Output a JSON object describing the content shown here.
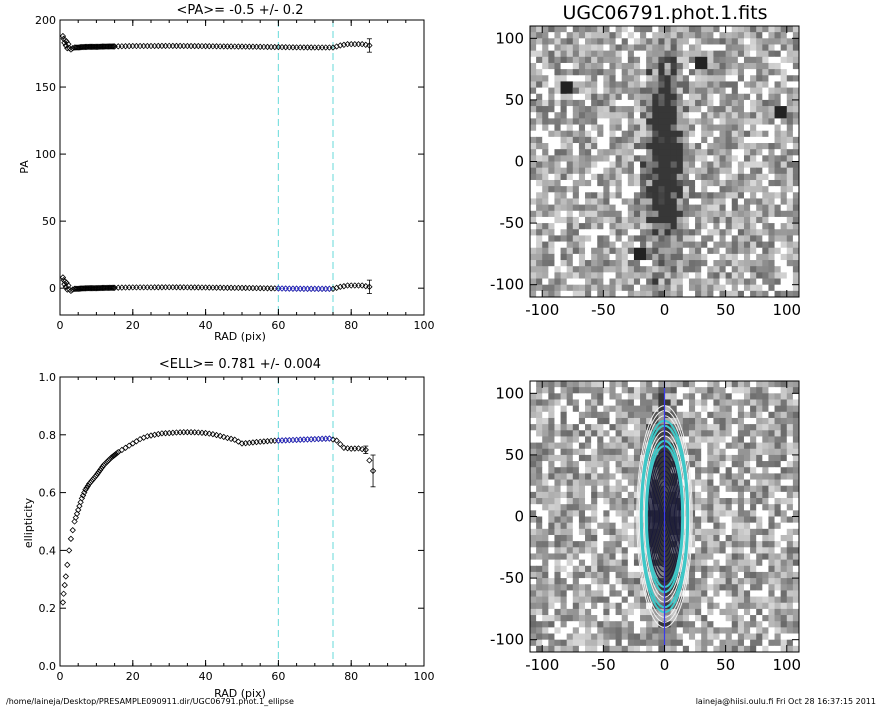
{
  "chart_data": [
    {
      "type": "scatter",
      "title": "<PA>=  -0.5 +/-   0.2",
      "xlabel": "RAD (pix)",
      "ylabel": "PA",
      "xlim": [
        0,
        100
      ],
      "ylim": [
        -20,
        200
      ],
      "xticks": [
        0,
        20,
        40,
        60,
        80,
        100
      ],
      "yticks": [
        0,
        50,
        100,
        150,
        200
      ],
      "vlines": [
        60,
        75
      ],
      "vline_color": "#7fe0e0",
      "series": [
        {
          "role": "upper",
          "color": "#000000",
          "points": [
            [
              0.8,
              188
            ],
            [
              1.0,
              186
            ],
            [
              1.2,
              183
            ],
            [
              1.4,
              185
            ],
            [
              1.6,
              181
            ],
            [
              1.8,
              184
            ],
            [
              2.0,
              179
            ],
            [
              2.3,
              182
            ],
            [
              2.6,
              179
            ],
            [
              3.0,
              178
            ],
            [
              3.5,
              179
            ],
            [
              4,
              179.5
            ],
            [
              5,
              179.5
            ],
            [
              6,
              179.8
            ],
            [
              8,
              180
            ],
            [
              10,
              180
            ],
            [
              12,
              180.2
            ],
            [
              15,
              180.3
            ],
            [
              18,
              180.5
            ],
            [
              20,
              180.6
            ],
            [
              25,
              180.6
            ],
            [
              30,
              180.7
            ],
            [
              35,
              180.6
            ],
            [
              40,
              180.5
            ],
            [
              45,
              180.3
            ],
            [
              50,
              180.2
            ],
            [
              55,
              180
            ],
            [
              60,
              179.8
            ],
            [
              65,
              179.6
            ],
            [
              70,
              179.5
            ],
            [
              75,
              179.5
            ],
            [
              77,
              181
            ],
            [
              79,
              182
            ],
            [
              81,
              182
            ],
            [
              83,
              182
            ],
            [
              85,
              181
            ]
          ],
          "error_bars": [
            [
              85,
              176,
              186
            ]
          ]
        },
        {
          "role": "lower",
          "color": "#000000",
          "points": [
            [
              0.8,
              8
            ],
            [
              1.0,
              6
            ],
            [
              1.2,
              3
            ],
            [
              1.4,
              5
            ],
            [
              1.6,
              1
            ],
            [
              1.8,
              4
            ],
            [
              2.0,
              -1
            ],
            [
              2.3,
              2
            ],
            [
              2.6,
              -1
            ],
            [
              3.0,
              -2
            ],
            [
              3.5,
              -1
            ],
            [
              4,
              -0.5
            ],
            [
              5,
              -0.5
            ],
            [
              6,
              -0.2
            ],
            [
              8,
              0
            ],
            [
              10,
              0
            ],
            [
              12,
              0.2
            ],
            [
              15,
              0.3
            ],
            [
              18,
              0.5
            ],
            [
              20,
              0.6
            ],
            [
              25,
              0.6
            ],
            [
              30,
              0.7
            ],
            [
              35,
              0.6
            ],
            [
              40,
              0.5
            ],
            [
              45,
              0.3
            ],
            [
              50,
              0.2
            ],
            [
              55,
              0
            ],
            [
              60,
              -0.2
            ],
            [
              65,
              -0.4
            ],
            [
              70,
              -0.5
            ],
            [
              75,
              -0.5
            ],
            [
              77,
              1
            ],
            [
              79,
              2
            ],
            [
              81,
              2
            ],
            [
              83,
              2
            ],
            [
              85,
              1
            ]
          ],
          "error_bars": [
            [
              85,
              -4,
              6
            ]
          ]
        },
        {
          "role": "fit-range",
          "color": "#2a2acc",
          "points": [
            [
              60,
              -0.2
            ],
            [
              62,
              -0.3
            ],
            [
              64,
              -0.4
            ],
            [
              66,
              -0.4
            ],
            [
              68,
              -0.5
            ],
            [
              70,
              -0.5
            ],
            [
              72,
              -0.5
            ],
            [
              74,
              -0.5
            ]
          ]
        }
      ]
    },
    {
      "type": "image",
      "title": "UGC06791.phot.1.fits",
      "xlim": [
        -110,
        110
      ],
      "ylim": [
        -110,
        110
      ],
      "xticks": [
        -100,
        -50,
        0,
        50,
        100
      ],
      "yticks": [
        -100,
        -50,
        0,
        50,
        100
      ],
      "galaxy": {
        "cx": 0,
        "cy": 0,
        "major_half": 80,
        "minor_half": 14
      },
      "bright_spots": [
        [
          95,
          40
        ],
        [
          -20,
          -75
        ],
        [
          30,
          80
        ],
        [
          -80,
          60
        ]
      ]
    },
    {
      "type": "scatter",
      "title": "<ELL>= 0.781 +/-  0.004",
      "xlabel": "RAD (pix)",
      "ylabel": "ellipticity",
      "xlim": [
        0,
        100
      ],
      "ylim": [
        0.0,
        1.0
      ],
      "xticks": [
        0,
        20,
        40,
        60,
        80,
        100
      ],
      "yticks": [
        0.0,
        0.2,
        0.4,
        0.6,
        0.8,
        1.0
      ],
      "ytick_labels": [
        "0.0",
        "0.2",
        "0.4",
        "0.6",
        "0.8",
        "1.0"
      ],
      "vlines": [
        60,
        75
      ],
      "vline_color": "#7fe0e0",
      "series": [
        {
          "role": "profile",
          "color": "#000000",
          "points": [
            [
              0.8,
              0.22
            ],
            [
              1,
              0.25
            ],
            [
              1.3,
              0.28
            ],
            [
              1.6,
              0.31
            ],
            [
              2,
              0.35
            ],
            [
              2.5,
              0.4
            ],
            [
              3,
              0.44
            ],
            [
              3.5,
              0.47
            ],
            [
              4,
              0.5
            ],
            [
              5,
              0.54
            ],
            [
              6,
              0.58
            ],
            [
              7,
              0.61
            ],
            [
              8,
              0.63
            ],
            [
              9,
              0.645
            ],
            [
              10,
              0.66
            ],
            [
              12,
              0.695
            ],
            [
              14,
              0.72
            ],
            [
              16,
              0.74
            ],
            [
              18,
              0.755
            ],
            [
              20,
              0.77
            ],
            [
              22,
              0.785
            ],
            [
              24,
              0.795
            ],
            [
              26,
              0.8
            ],
            [
              28,
              0.805
            ],
            [
              30,
              0.806
            ],
            [
              32,
              0.808
            ],
            [
              34,
              0.809
            ],
            [
              36,
              0.809
            ],
            [
              38,
              0.808
            ],
            [
              40,
              0.806
            ],
            [
              42,
              0.802
            ],
            [
              44,
              0.796
            ],
            [
              46,
              0.789
            ],
            [
              48,
              0.783
            ],
            [
              50,
              0.77
            ],
            [
              52,
              0.772
            ],
            [
              54,
              0.775
            ],
            [
              56,
              0.777
            ],
            [
              58,
              0.779
            ],
            [
              60,
              0.78
            ],
            [
              62,
              0.781
            ],
            [
              64,
              0.782
            ],
            [
              66,
              0.783
            ],
            [
              68,
              0.784
            ],
            [
              70,
              0.785
            ],
            [
              72,
              0.786
            ],
            [
              74,
              0.787
            ],
            [
              76,
              0.78
            ],
            [
              78,
              0.755
            ],
            [
              80,
              0.752
            ],
            [
              82,
              0.753
            ],
            [
              84,
              0.748
            ],
            [
              86,
              0.675
            ]
          ],
          "error_bars": [
            [
              84,
              0.735,
              0.761
            ],
            [
              86,
              0.62,
              0.73
            ]
          ]
        },
        {
          "role": "fit-range",
          "color": "#2a2acc",
          "points": [
            [
              60,
              0.78
            ],
            [
              62,
              0.781
            ],
            [
              64,
              0.782
            ],
            [
              66,
              0.783
            ],
            [
              68,
              0.784
            ],
            [
              70,
              0.785
            ],
            [
              72,
              0.786
            ],
            [
              74,
              0.787
            ]
          ]
        }
      ]
    },
    {
      "type": "image",
      "title": "",
      "xlim": [
        -110,
        110
      ],
      "ylim": [
        -110,
        110
      ],
      "xticks": [
        -100,
        -50,
        0,
        50,
        100
      ],
      "yticks": [
        -100,
        -50,
        0,
        50,
        100
      ],
      "ellipses": {
        "cx": 0,
        "cy": 0,
        "max_semi_major": 90,
        "ellipticity": 0.781,
        "count": 22
      },
      "highlight_semi_major": [
        60,
        75
      ],
      "highlight_color": "#3fc8c8",
      "axis_line_color": "#3a3aee"
    }
  ],
  "footer": {
    "left": "/home/laineja/Desktop/PRESAMPLE090911.dir/UGC06791.phot.1_ellipse",
    "right": "laineja@hiisi.oulu.fi  Fri Oct 28 16:37:15 2011"
  }
}
